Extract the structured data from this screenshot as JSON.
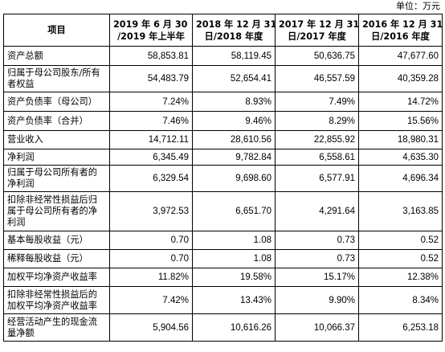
{
  "unit_label": "单位：万元",
  "header": {
    "item": "项目",
    "columns": [
      [
        "2019 年 6 月 30 日",
        "/2019 年上半年"
      ],
      [
        "2018 年 12 月 31",
        "日/2018 年度"
      ],
      [
        "2017 年 12 月 31",
        "日/2017 年度"
      ],
      [
        "2016 年 12 月 31",
        "日/2016 年度"
      ]
    ]
  },
  "rows": [
    {
      "label": "资产总额",
      "values": [
        "58,853.81",
        "58,119.45",
        "50,636.75",
        "47,677.60"
      ]
    },
    {
      "label": "归属于母公司股东/所有者权益",
      "values": [
        "54,483.79",
        "52,654.41",
        "46,557.59",
        "40,359.28"
      ]
    },
    {
      "label": "资产负债率（母公司）",
      "values": [
        "7.24%",
        "8.93%",
        "7.49%",
        "14.72%"
      ]
    },
    {
      "label": "资产负债率（合并）",
      "values": [
        "7.46%",
        "9.46%",
        "8.29%",
        "15.56%"
      ]
    },
    {
      "label": "营业收入",
      "values": [
        "14,712.11",
        "28,610.56",
        "22,855.92",
        "18,980.31"
      ]
    },
    {
      "label": "净利润",
      "values": [
        "6,345.49",
        "9,782.84",
        "6,558.61",
        "4,635.30"
      ]
    },
    {
      "label": "归属于母公司所有者的净利润",
      "values": [
        "6,329.54",
        "9,698.60",
        "6,577.91",
        "4,696.34"
      ]
    },
    {
      "label": "扣除非经常性损益后归属于母公司所有者的净利润",
      "values": [
        "3,972.53",
        "6,651.70",
        "4,291.64",
        "3,163.85"
      ]
    },
    {
      "label": "基本每股收益（元）",
      "values": [
        "0.70",
        "1.08",
        "0.73",
        "0.52"
      ]
    },
    {
      "label": "稀释每股收益（元）",
      "values": [
        "0.70",
        "1.08",
        "0.73",
        "0.52"
      ]
    },
    {
      "label": "加权平均净资产收益率",
      "values": [
        "11.82%",
        "19.58%",
        "15.17%",
        "12.38%"
      ]
    },
    {
      "label": "扣除非经常性损益后的加权平均净资产收益率",
      "values": [
        "7.42%",
        "13.43%",
        "9.90%",
        "8.34%"
      ]
    },
    {
      "label": "经营活动产生的现金流量净额",
      "values": [
        "5,904.56",
        "10,616.26",
        "10,066.37",
        "6,253.18"
      ]
    }
  ]
}
